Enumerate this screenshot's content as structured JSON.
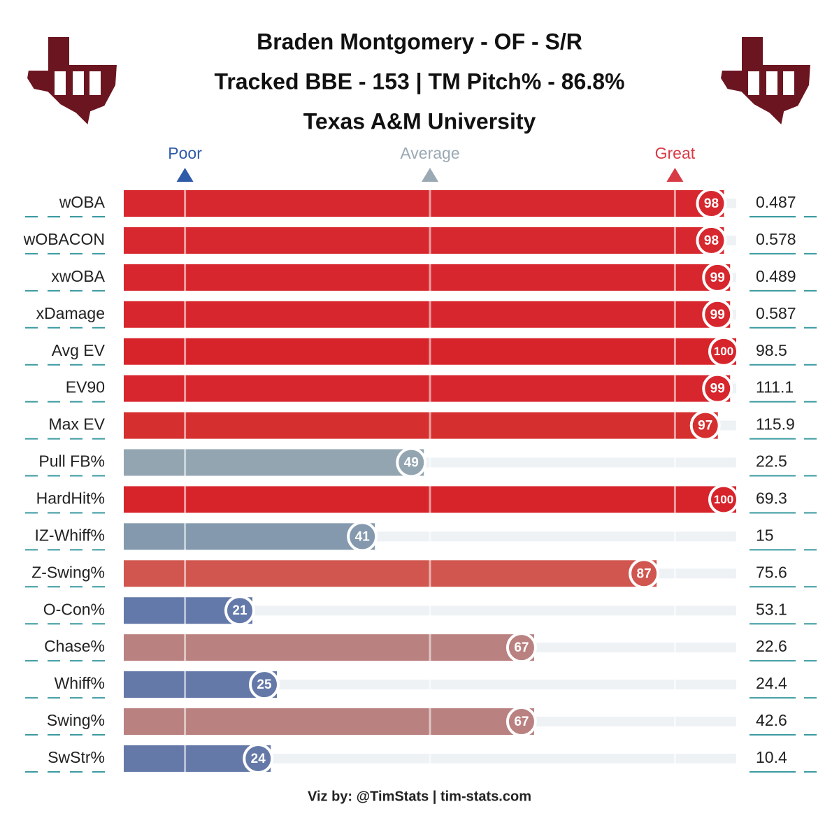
{
  "chart_data": {
    "type": "percentile_bar",
    "title_lines": [
      "Braden Montgomery - OF - S/R",
      "Tracked BBE - 153 | TM Pitch% - 86.8%",
      "Texas A&M University"
    ],
    "footer": "Viz by: @TimStats | tim-stats.com",
    "xlim": [
      0,
      100
    ],
    "markers": [
      {
        "label": "Poor",
        "value": 10,
        "color": "#2f5aa8"
      },
      {
        "label": "Average",
        "value": 50,
        "color": "#9aa9b4"
      },
      {
        "label": "Great",
        "value": 90,
        "color": "#d83a45"
      }
    ],
    "categories": [
      "wOBA",
      "wOBACON",
      "xwOBA",
      "xDamage",
      "Avg EV",
      "EV90",
      "Max EV",
      "Pull FB%",
      "HardHit%",
      "IZ-Whiff%",
      "Z-Swing%",
      "O-Con%",
      "Chase%",
      "Whiff%",
      "Swing%",
      "SwStr%"
    ],
    "values": [
      98,
      98,
      99,
      99,
      100,
      99,
      97,
      49,
      100,
      41,
      87,
      21,
      67,
      25,
      67,
      24
    ],
    "raw_values": [
      0.487,
      0.578,
      0.489,
      0.587,
      98.5,
      111.1,
      115.9,
      22.5,
      69.3,
      15,
      75.6,
      53.1,
      22.6,
      24.4,
      42.6,
      10.4
    ],
    "colors": [
      "#d7282f",
      "#d7282f",
      "#d7262d",
      "#d7262d",
      "#d7242b",
      "#d7262d",
      "#d5302f",
      "#93a5b1",
      "#d7242b",
      "#8499ad",
      "#d0564f",
      "#6379a9",
      "#b98180",
      "#6479a8",
      "#b98180",
      "#6479a8"
    ]
  }
}
